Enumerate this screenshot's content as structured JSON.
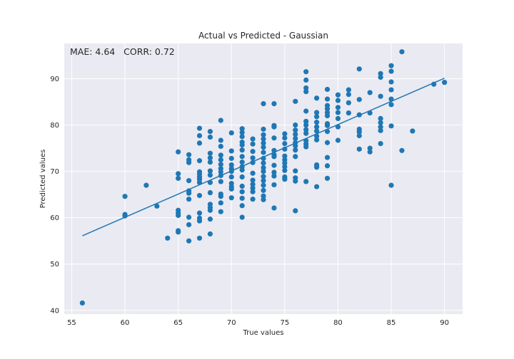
{
  "chart_data": {
    "type": "scatter",
    "title": "Actual vs Predicted - Gaussian",
    "xlabel": "True values",
    "ylabel": "Predicted values",
    "annotation": "MAE: 4.64   CORR: 0.72",
    "xlim": [
      54.3,
      91.7
    ],
    "ylim": [
      39.2,
      97.6
    ],
    "xticks": [
      55,
      60,
      65,
      70,
      75,
      80,
      85,
      90
    ],
    "yticks": [
      40,
      50,
      60,
      70,
      80,
      90
    ],
    "grid": true,
    "colors": {
      "background": "#eaeaf2",
      "grid": "#ffffff",
      "points": "#1f77b4",
      "line": "#1f77b4"
    },
    "fit_line": {
      "x": [
        56,
        90
      ],
      "y": [
        56.1,
        90.1
      ]
    },
    "points": [
      [
        56,
        41.6
      ],
      [
        60,
        64.6
      ],
      [
        60,
        60.7
      ],
      [
        60,
        60.4
      ],
      [
        62,
        67.0
      ],
      [
        63,
        62.5
      ],
      [
        64,
        55.6
      ],
      [
        65,
        74.2
      ],
      [
        65,
        69.5
      ],
      [
        65,
        68.5
      ],
      [
        65,
        61.6
      ],
      [
        65,
        61.0
      ],
      [
        65,
        60.5
      ],
      [
        65,
        57.2
      ],
      [
        65,
        56.9
      ],
      [
        66,
        73.6
      ],
      [
        66,
        72.5
      ],
      [
        66,
        71.9
      ],
      [
        66,
        68.0
      ],
      [
        66,
        65.8
      ],
      [
        66,
        65.3
      ],
      [
        66,
        64.0
      ],
      [
        66,
        60.1
      ],
      [
        66,
        58.5
      ],
      [
        66,
        55.0
      ],
      [
        67,
        79.3
      ],
      [
        67,
        77.7
      ],
      [
        67,
        76.1
      ],
      [
        67,
        72.3
      ],
      [
        67,
        69.9
      ],
      [
        67,
        69.4
      ],
      [
        67,
        68.8
      ],
      [
        67,
        68.3
      ],
      [
        67,
        67.6
      ],
      [
        67,
        64.8
      ],
      [
        67,
        61.0
      ],
      [
        67,
        59.9
      ],
      [
        67,
        59.3
      ],
      [
        67,
        55.6
      ],
      [
        68,
        78.6
      ],
      [
        68,
        77.4
      ],
      [
        68,
        73.9
      ],
      [
        68,
        72.9
      ],
      [
        68,
        72.0
      ],
      [
        68,
        70.1
      ],
      [
        68,
        69.2
      ],
      [
        68,
        67.6
      ],
      [
        68,
        65.4
      ],
      [
        68,
        62.9
      ],
      [
        68,
        62.2
      ],
      [
        68,
        61.6
      ],
      [
        68,
        59.7
      ],
      [
        68,
        56.5
      ],
      [
        69,
        81.0
      ],
      [
        69,
        76.7
      ],
      [
        69,
        75.4
      ],
      [
        69,
        73.5
      ],
      [
        69,
        72.5
      ],
      [
        69,
        71.5
      ],
      [
        69,
        70.6
      ],
      [
        69,
        69.9
      ],
      [
        69,
        69.1
      ],
      [
        69,
        67.8
      ],
      [
        69,
        65.1
      ],
      [
        69,
        64.6
      ],
      [
        69,
        63.2
      ],
      [
        69,
        61.3
      ],
      [
        70,
        78.3
      ],
      [
        70,
        74.4
      ],
      [
        70,
        72.8
      ],
      [
        70,
        71.4
      ],
      [
        70,
        70.6
      ],
      [
        70,
        70.0
      ],
      [
        70,
        68.8
      ],
      [
        70,
        67.4
      ],
      [
        70,
        66.7
      ],
      [
        70,
        66.2
      ],
      [
        70,
        64.3
      ],
      [
        71,
        79.2
      ],
      [
        71,
        78.4
      ],
      [
        71,
        77.5
      ],
      [
        71,
        76.3
      ],
      [
        71,
        75.7
      ],
      [
        71,
        74.6
      ],
      [
        71,
        73.2
      ],
      [
        71,
        72.0
      ],
      [
        71,
        71.0
      ],
      [
        71,
        70.3
      ],
      [
        71,
        68.8
      ],
      [
        71,
        66.8
      ],
      [
        71,
        65.6
      ],
      [
        71,
        64.2
      ],
      [
        71,
        62.6
      ],
      [
        71,
        60.1
      ],
      [
        72,
        77.0
      ],
      [
        72,
        75.9
      ],
      [
        72,
        74.3
      ],
      [
        72,
        72.9
      ],
      [
        72,
        71.9
      ],
      [
        72,
        69.6
      ],
      [
        72,
        68.1
      ],
      [
        72,
        67.2
      ],
      [
        72,
        66.4
      ],
      [
        72,
        65.6
      ],
      [
        72,
        64.0
      ],
      [
        73,
        84.6
      ],
      [
        73,
        79.1
      ],
      [
        73,
        77.9
      ],
      [
        73,
        77.0
      ],
      [
        73,
        76.1
      ],
      [
        73,
        75.2
      ],
      [
        73,
        74.1
      ],
      [
        73,
        72.8
      ],
      [
        73,
        71.8
      ],
      [
        73,
        70.8
      ],
      [
        73,
        70.0
      ],
      [
        73,
        68.9
      ],
      [
        73,
        68.0
      ],
      [
        73,
        67.0
      ],
      [
        73,
        65.9
      ],
      [
        73,
        64.7
      ],
      [
        73,
        63.9
      ],
      [
        74,
        84.6
      ],
      [
        74,
        79.9
      ],
      [
        74,
        79.6
      ],
      [
        74,
        77.2
      ],
      [
        74,
        74.5
      ],
      [
        74,
        73.6
      ],
      [
        74,
        73.2
      ],
      [
        74,
        71.3
      ],
      [
        74,
        69.8
      ],
      [
        74,
        69.0
      ],
      [
        74,
        67.1
      ],
      [
        74,
        62.1
      ],
      [
        75,
        78.1
      ],
      [
        75,
        77.2
      ],
      [
        75,
        76.0
      ],
      [
        75,
        74.8
      ],
      [
        75,
        73.3
      ],
      [
        75,
        72.5
      ],
      [
        75,
        71.8
      ],
      [
        75,
        71.0
      ],
      [
        75,
        70.2
      ],
      [
        75,
        68.8
      ],
      [
        75,
        68.3
      ],
      [
        76,
        85.1
      ],
      [
        76,
        80.0
      ],
      [
        76,
        78.9
      ],
      [
        76,
        78.0
      ],
      [
        76,
        77.1
      ],
      [
        76,
        76.2
      ],
      [
        76,
        75.5
      ],
      [
        76,
        74.6
      ],
      [
        76,
        73.2
      ],
      [
        76,
        70.1
      ],
      [
        76,
        68.6
      ],
      [
        76,
        67.9
      ],
      [
        76,
        61.5
      ],
      [
        77,
        91.5
      ],
      [
        77,
        89.7
      ],
      [
        77,
        88.0
      ],
      [
        77,
        87.2
      ],
      [
        77,
        83.0
      ],
      [
        77,
        80.8
      ],
      [
        77,
        80.0
      ],
      [
        77,
        79.0
      ],
      [
        77,
        78.2
      ],
      [
        77,
        76.6
      ],
      [
        77,
        75.9
      ],
      [
        77,
        75.3
      ],
      [
        77,
        67.8
      ],
      [
        78,
        85.8
      ],
      [
        78,
        82.7
      ],
      [
        78,
        81.8
      ],
      [
        78,
        80.6
      ],
      [
        78,
        79.6
      ],
      [
        78,
        78.7
      ],
      [
        78,
        77.6
      ],
      [
        78,
        76.8
      ],
      [
        78,
        71.4
      ],
      [
        78,
        70.9
      ],
      [
        78,
        66.7
      ],
      [
        79,
        87.7
      ],
      [
        79,
        85.6
      ],
      [
        79,
        84.2
      ],
      [
        79,
        83.5
      ],
      [
        79,
        82.7
      ],
      [
        79,
        82.0
      ],
      [
        79,
        80.3
      ],
      [
        79,
        79.9
      ],
      [
        79,
        78.6
      ],
      [
        79,
        76.2
      ],
      [
        79,
        73.0
      ],
      [
        79,
        71.2
      ],
      [
        79,
        68.5
      ],
      [
        80,
        86.5
      ],
      [
        80,
        85.3
      ],
      [
        80,
        83.8
      ],
      [
        80,
        82.7
      ],
      [
        80,
        81.4
      ],
      [
        80,
        79.6
      ],
      [
        80,
        76.7
      ],
      [
        81,
        87.6
      ],
      [
        81,
        86.6
      ],
      [
        81,
        84.8
      ],
      [
        81,
        82.6
      ],
      [
        82,
        92.1
      ],
      [
        82,
        85.5
      ],
      [
        82,
        82.2
      ],
      [
        82,
        79.1
      ],
      [
        82,
        78.5
      ],
      [
        82,
        77.7
      ],
      [
        82,
        74.8
      ],
      [
        83,
        87.0
      ],
      [
        83,
        82.6
      ],
      [
        83,
        75.0
      ],
      [
        83,
        74.2
      ],
      [
        84,
        91.1
      ],
      [
        84,
        90.3
      ],
      [
        84,
        86.2
      ],
      [
        84,
        81.4
      ],
      [
        84,
        80.5
      ],
      [
        84,
        79.6
      ],
      [
        84,
        78.8
      ],
      [
        84,
        76.0
      ],
      [
        85,
        92.8
      ],
      [
        85,
        91.6
      ],
      [
        85,
        89.3
      ],
      [
        85,
        87.6
      ],
      [
        85,
        85.6
      ],
      [
        85,
        84.4
      ],
      [
        85,
        79.8
      ],
      [
        85,
        67.0
      ],
      [
        86,
        95.8
      ],
      [
        86,
        74.5
      ],
      [
        87,
        78.7
      ],
      [
        89,
        88.8
      ],
      [
        90,
        89.2
      ]
    ]
  }
}
